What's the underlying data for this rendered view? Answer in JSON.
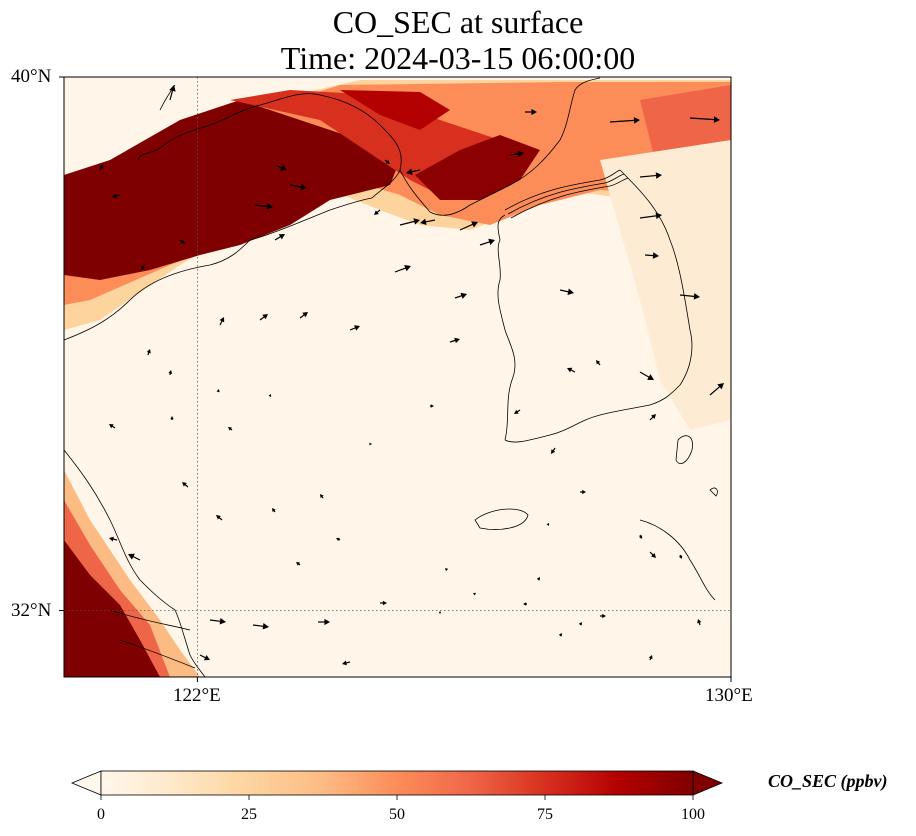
{
  "title": {
    "line1": "CO_SEC at surface",
    "line2": "Time: 2024-03-15 06:00:00"
  },
  "map": {
    "extent": {
      "lon_min": 120.0,
      "lon_max": 130.0,
      "lat_min": 31.0,
      "lat_max": 40.0
    },
    "gridlines": {
      "lon": [
        122
      ],
      "lat": [
        32
      ],
      "style": "dotted"
    },
    "lat_ticks": [
      {
        "value": 40,
        "label": "40°N"
      },
      {
        "value": 32,
        "label": "32°N"
      }
    ],
    "lon_ticks": [
      {
        "value": 122,
        "label": "122°E"
      },
      {
        "value": 130,
        "label": "130°E"
      }
    ],
    "features": [
      "coastline",
      "land-ocean",
      "borders"
    ]
  },
  "colorbar": {
    "title": "CO_SEC (ppbv)",
    "cmap": "OrRd",
    "min": 0,
    "max": 100,
    "extend": "both",
    "ticks": [
      {
        "value": 0,
        "label": "0"
      },
      {
        "value": 25,
        "label": "25"
      },
      {
        "value": 50,
        "label": "50"
      },
      {
        "value": 75,
        "label": "75"
      },
      {
        "value": 100,
        "label": "100"
      }
    ],
    "stops": [
      "#fff7ec",
      "#fee8c8",
      "#fdd49e",
      "#fdbb84",
      "#fc8d59",
      "#ef6548",
      "#d7301f",
      "#b30000",
      "#7f0000"
    ]
  },
  "wind_vectors": "black-arrows"
}
